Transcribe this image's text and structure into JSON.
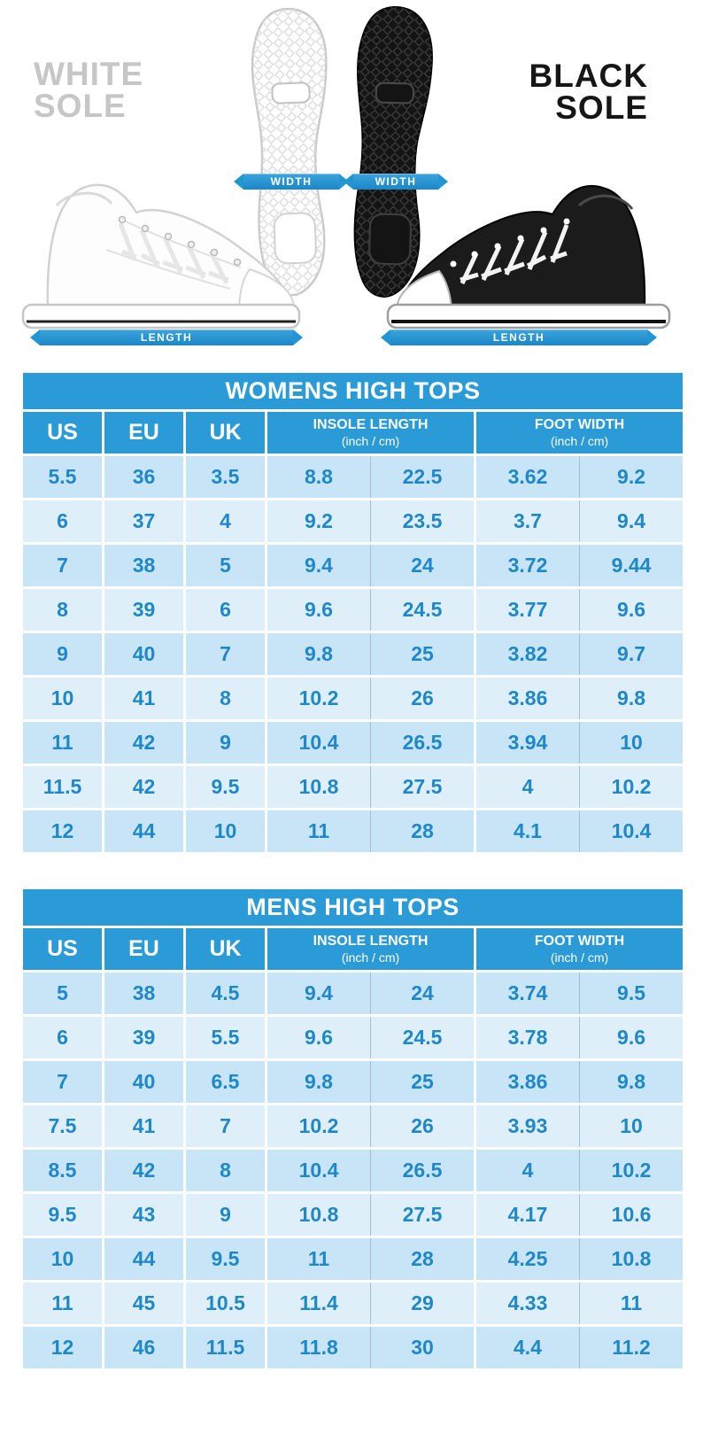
{
  "colors": {
    "accent_blue": "#2196d3",
    "header_blue": "#2b9bd7",
    "data_text_blue": "#1e88c9",
    "row_dark": "#c8e5f7",
    "row_light": "#dfeffa",
    "white_label_gray": "#c6c6c6",
    "black_label": "#161616"
  },
  "hero": {
    "white_sole_line1": "WHITE",
    "white_sole_line2": "SOLE",
    "black_sole_line1": "BLACK",
    "black_sole_line2": "SOLE",
    "width_left": "WIDTH",
    "width_right": "WIDTH",
    "length_left": "LENGTH",
    "length_right": "LENGTH"
  },
  "chart_data": [
    {
      "type": "table",
      "title": "WOMENS HIGH TOPS",
      "simple_columns": [
        "US",
        "EU",
        "UK"
      ],
      "group_columns": [
        {
          "label": "INSOLE LENGTH",
          "unit": "(inch / cm)"
        },
        {
          "label": "FOOT WIDTH",
          "unit": "(inch / cm)"
        }
      ],
      "rows": [
        [
          "5.5",
          "36",
          "3.5",
          "8.8",
          "22.5",
          "3.62",
          "9.2"
        ],
        [
          "6",
          "37",
          "4",
          "9.2",
          "23.5",
          "3.7",
          "9.4"
        ],
        [
          "7",
          "38",
          "5",
          "9.4",
          "24",
          "3.72",
          "9.44"
        ],
        [
          "8",
          "39",
          "6",
          "9.6",
          "24.5",
          "3.77",
          "9.6"
        ],
        [
          "9",
          "40",
          "7",
          "9.8",
          "25",
          "3.82",
          "9.7"
        ],
        [
          "10",
          "41",
          "8",
          "10.2",
          "26",
          "3.86",
          "9.8"
        ],
        [
          "11",
          "42",
          "9",
          "10.4",
          "26.5",
          "3.94",
          "10"
        ],
        [
          "11.5",
          "42",
          "9.5",
          "10.8",
          "27.5",
          "4",
          "10.2"
        ],
        [
          "12",
          "44",
          "10",
          "11",
          "28",
          "4.1",
          "10.4"
        ]
      ]
    },
    {
      "type": "table",
      "title": "MENS HIGH TOPS",
      "simple_columns": [
        "US",
        "EU",
        "UK"
      ],
      "group_columns": [
        {
          "label": "INSOLE LENGTH",
          "unit": "(inch / cm)"
        },
        {
          "label": "FOOT WIDTH",
          "unit": "(inch / cm)"
        }
      ],
      "rows": [
        [
          "5",
          "38",
          "4.5",
          "9.4",
          "24",
          "3.74",
          "9.5"
        ],
        [
          "6",
          "39",
          "5.5",
          "9.6",
          "24.5",
          "3.78",
          "9.6"
        ],
        [
          "7",
          "40",
          "6.5",
          "9.8",
          "25",
          "3.86",
          "9.8"
        ],
        [
          "7.5",
          "41",
          "7",
          "10.2",
          "26",
          "3.93",
          "10"
        ],
        [
          "8.5",
          "42",
          "8",
          "10.4",
          "26.5",
          "4",
          "10.2"
        ],
        [
          "9.5",
          "43",
          "9",
          "10.8",
          "27.5",
          "4.17",
          "10.6"
        ],
        [
          "10",
          "44",
          "9.5",
          "11",
          "28",
          "4.25",
          "10.8"
        ],
        [
          "11",
          "45",
          "10.5",
          "11.4",
          "29",
          "4.33",
          "11"
        ],
        [
          "12",
          "46",
          "11.5",
          "11.8",
          "30",
          "4.4",
          "11.2"
        ]
      ]
    }
  ]
}
